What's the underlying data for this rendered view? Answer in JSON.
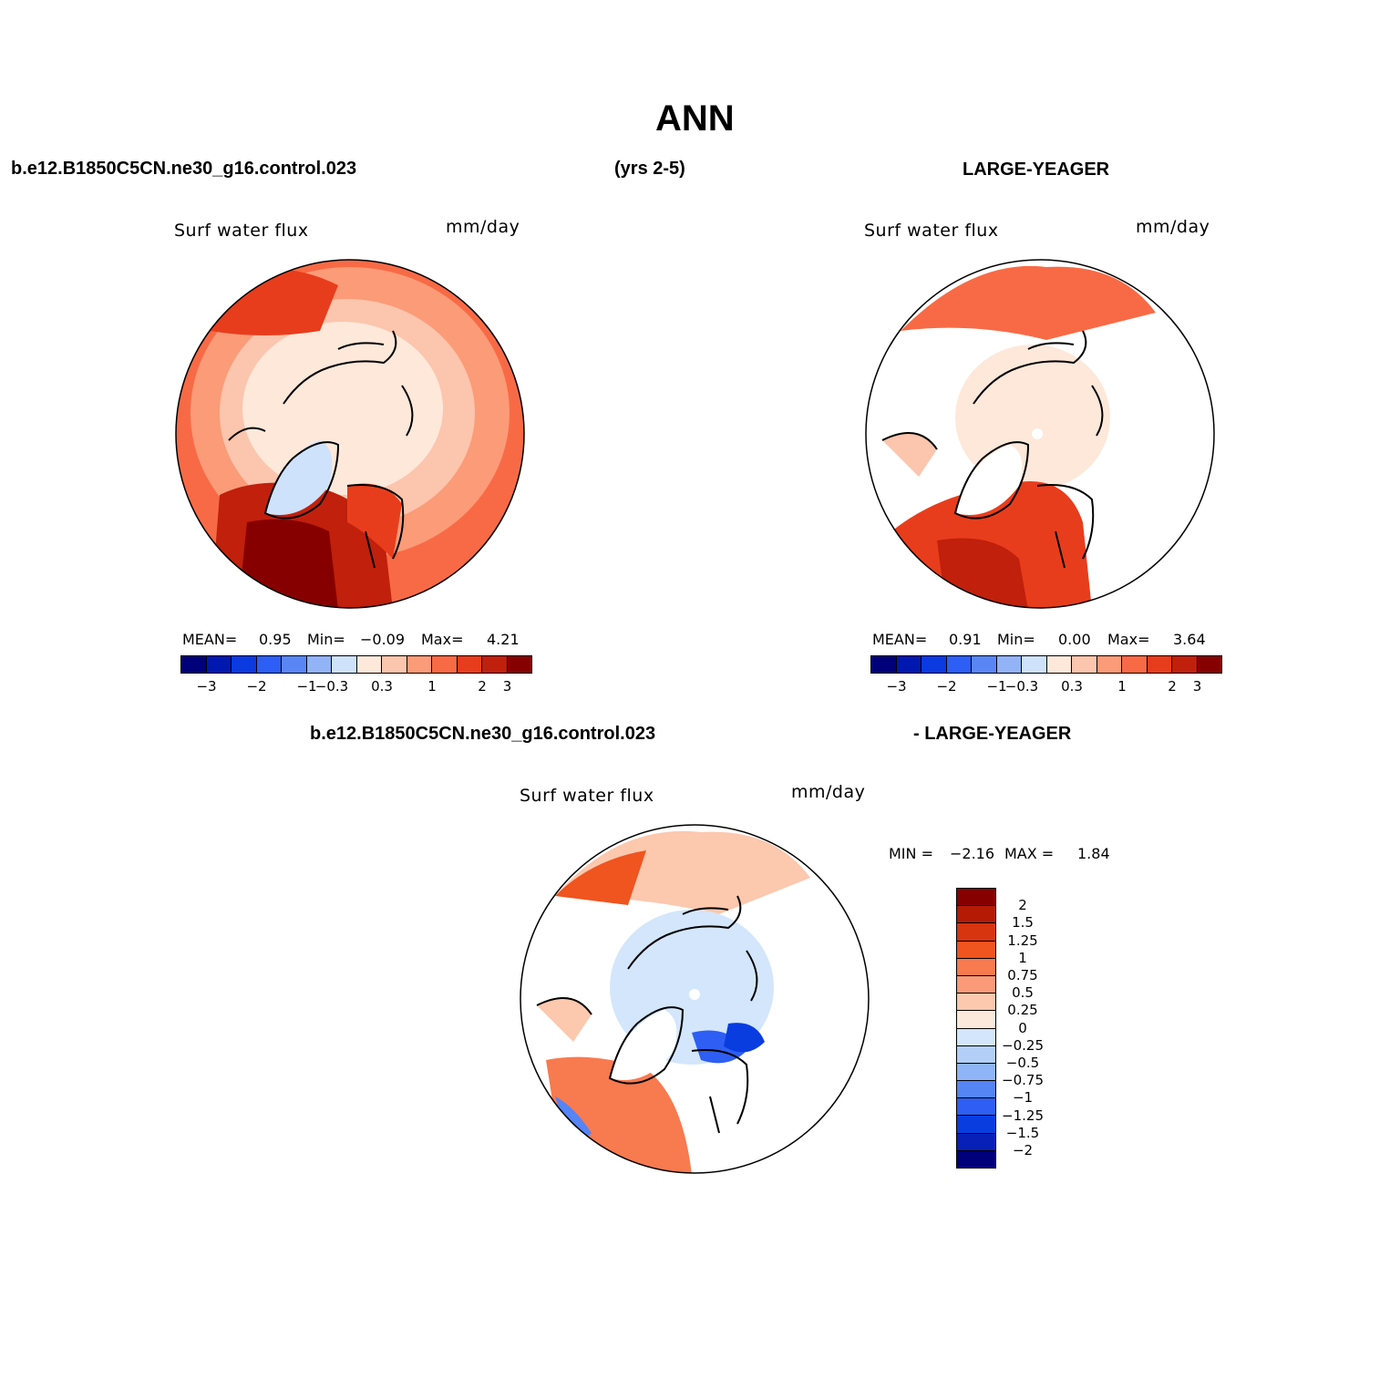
{
  "title": "ANN",
  "case1": "b.e12.B1850C5CN.ne30_g16.control.023",
  "years": "(yrs 2-5)",
  "case2": "LARGE-YEAGER",
  "diff_case": "b.e12.B1850C5CN.ne30_g16.control.023",
  "diff_case2": "- LARGE-YEAGER",
  "panels": [
    {
      "variable": "Surf water flux",
      "units": "mm/day",
      "mean_label": "MEAN=",
      "mean": "0.95",
      "min_label": "Min=",
      "min": "−0.09",
      "max_label": "Max=",
      "max": "4.21"
    },
    {
      "variable": "Surf water flux",
      "units": "mm/day",
      "mean_label": "MEAN=",
      "mean": "0.91",
      "min_label": "Min=",
      "min": "0.00",
      "max_label": "Max=",
      "max": "3.64"
    }
  ],
  "diff_panel": {
    "variable": "Surf water flux",
    "units": "mm/day",
    "min_label": "MIN =",
    "min": "−2.16",
    "max_label": "MAX =",
    "max": "1.84"
  },
  "colorbar": {
    "colors": [
      "#00007a",
      "#0018b0",
      "#0a3ae0",
      "#2d5ef5",
      "#5a86f5",
      "#93b3f7",
      "#cfe2fb",
      "#fde8da",
      "#fcc5ad",
      "#fb9b78",
      "#f86a45",
      "#e83d1c",
      "#c0200c",
      "#870000"
    ],
    "tick_labels": [
      "−3",
      "−2",
      "−1",
      "−0.3",
      "0.3",
      "1",
      "2",
      "3"
    ]
  },
  "diff_colorbar": {
    "colors": [
      "#870000",
      "#b51a05",
      "#d63510",
      "#f0541f",
      "#f87a4f",
      "#fb9a78",
      "#fcc8ae",
      "#fde9dc",
      "#d3e6fb",
      "#b3cff8",
      "#8fb4f7",
      "#5584f4",
      "#2e5ef3",
      "#0a3de0",
      "#0820b8",
      "#00007a"
    ],
    "tick_labels": [
      "2",
      "1.5",
      "1.25",
      "1",
      "0.75",
      "0.5",
      "0.25",
      "0",
      "−0.25",
      "−0.5",
      "−0.75",
      "−1",
      "−1.25",
      "−1.5",
      "−2"
    ]
  }
}
